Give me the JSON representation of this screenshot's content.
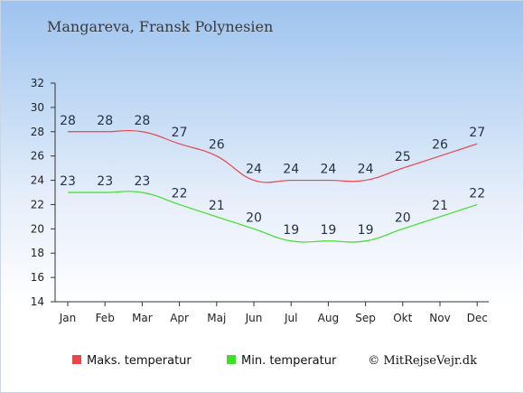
{
  "page": {
    "title": "Mangareva, Fransk Polynesien"
  },
  "chart_data": {
    "type": "line",
    "title": "Mangareva, Fransk Polynesien",
    "categories": [
      "Jan",
      "Feb",
      "Mar",
      "Apr",
      "Maj",
      "Jun",
      "Jul",
      "Aug",
      "Sep",
      "Okt",
      "Nov",
      "Dec"
    ],
    "series": [
      {
        "name": "Maks. temperatur",
        "color": "#e8464a",
        "values": [
          28,
          28,
          28,
          27,
          26,
          24,
          24,
          24,
          24,
          25,
          26,
          27
        ]
      },
      {
        "name": "Min. temperatur",
        "color": "#3fe02a",
        "values": [
          23,
          23,
          23,
          22,
          21,
          20,
          19,
          19,
          19,
          20,
          21,
          22
        ]
      }
    ],
    "ylim": [
      14,
      32
    ],
    "yticks": [
      14,
      16,
      18,
      20,
      22,
      24,
      26,
      28,
      30,
      32
    ],
    "grid": false,
    "legend_placement": "bottom-left"
  },
  "credit": "© MitRejseVejr.dk"
}
